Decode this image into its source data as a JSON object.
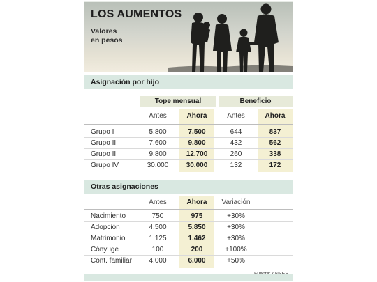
{
  "title": "LOS AUMENTOS",
  "subtitle": "Valores\nen pesos",
  "section1": {
    "title": "Asignación por hijo",
    "group_headers": [
      "Tope mensual",
      "Beneficio"
    ],
    "col_headers": [
      "Antes",
      "Ahora",
      "Antes",
      "Ahora"
    ],
    "rows": [
      {
        "label": "Grupo I",
        "values": [
          "5.800",
          "7.500",
          "644",
          "837"
        ]
      },
      {
        "label": "Grupo II",
        "values": [
          "7.600",
          "9.800",
          "432",
          "562"
        ]
      },
      {
        "label": "Grupo III",
        "values": [
          "9.800",
          "12.700",
          "260",
          "338"
        ]
      },
      {
        "label": "Grupo IV",
        "values": [
          "30.000",
          "30.000",
          "132",
          "172"
        ]
      }
    ]
  },
  "section2": {
    "title": "Otras asignaciones",
    "col_headers": [
      "Antes",
      "Ahora",
      "Variación"
    ],
    "rows": [
      {
        "label": "Nacimiento",
        "values": [
          "750",
          "975",
          "+30%"
        ]
      },
      {
        "label": "Adopción",
        "values": [
          "4.500",
          "5.850",
          "+30%"
        ]
      },
      {
        "label": "Matrimonio",
        "values": [
          "1.125",
          "1.462",
          "+30%"
        ]
      },
      {
        "label": "Cónyuge",
        "values": [
          "100",
          "200",
          "+100%"
        ]
      },
      {
        "label": "Cont. familiar",
        "values": [
          "4.000",
          "6.000",
          "+50%"
        ]
      }
    ]
  },
  "source": "Fuente: ANSES",
  "colors": {
    "section_bg": "#d9e8e1",
    "highlight": "#f4f0d3",
    "group_header_bg": "#e7ead9"
  }
}
